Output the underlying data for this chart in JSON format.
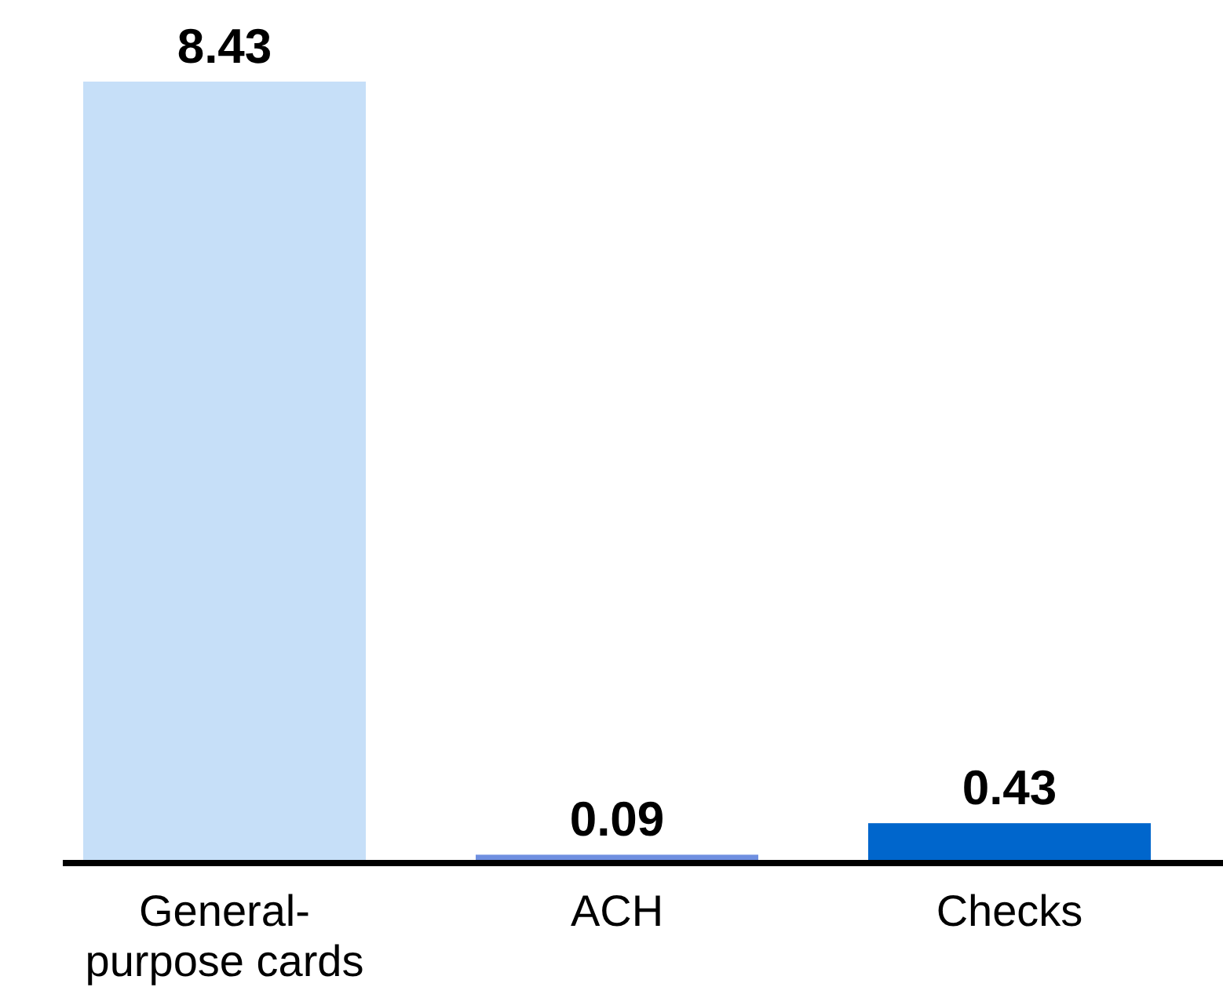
{
  "chart_data": {
    "type": "bar",
    "categories": [
      "General-purpose cards",
      "ACH",
      "Checks"
    ],
    "values": [
      8.43,
      0.09,
      0.43
    ],
    "colors": [
      "#c6dff8",
      "#6f8fe0",
      "#0066cc"
    ],
    "data_labels": true
  }
}
